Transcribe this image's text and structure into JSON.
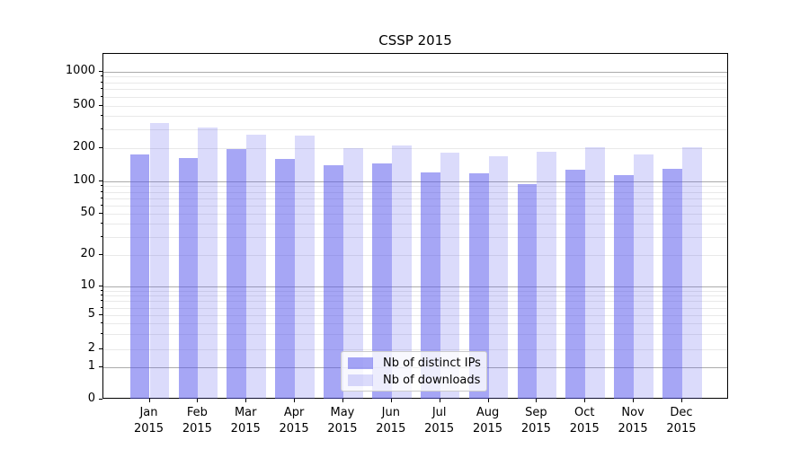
{
  "chart_data": {
    "type": "bar",
    "title": "CSSP 2015",
    "categories": [
      "Jan 2015",
      "Feb 2015",
      "Mar 2015",
      "Apr 2015",
      "May 2015",
      "Jun 2015",
      "Jul 2015",
      "Aug 2015",
      "Sep 2015",
      "Oct 2015",
      "Nov 2015",
      "Dec 2015"
    ],
    "series": [
      {
        "name": "Nb of distinct IPs",
        "color": "rgba(85,85,235,0.52)",
        "values": [
          176,
          163,
          195,
          160,
          140,
          145,
          121,
          118,
          94,
          127,
          114,
          130
        ]
      },
      {
        "name": "Nb of downloads",
        "color": "rgba(85,85,235,0.21)",
        "values": [
          340,
          310,
          268,
          260,
          200,
          212,
          182,
          170,
          184,
          202,
          176,
          204
        ]
      }
    ],
    "xlabel": "",
    "ylabel": "",
    "y_scale": "symlog",
    "ylim": [
      0,
      1400
    ],
    "y_tick_values": [
      0,
      1,
      2,
      5,
      10,
      20,
      50,
      100,
      200,
      500,
      1000
    ],
    "y_tick_labels": [
      "0",
      "1",
      "2",
      "5",
      "10",
      "20",
      "50",
      "100",
      "200",
      "500",
      "1000"
    ],
    "grid": "on (major + minor horizontal)",
    "legend_position": "lower center"
  },
  "colors": {
    "bar_distinct_ips": "rgba(85,85,235,0.52)",
    "bar_downloads": "rgba(85,85,235,0.21)",
    "grid_major": "#ababab",
    "grid_minor": "#e9e9e9",
    "axis_spine": "#000000",
    "legend_border": "#cccccc"
  },
  "legend": {
    "entries": [
      {
        "label": "Nb of distinct IPs",
        "swatch": "rgba(85,85,235,0.52)"
      },
      {
        "label": "Nb of downloads",
        "swatch": "rgba(85,85,235,0.21)"
      }
    ]
  }
}
